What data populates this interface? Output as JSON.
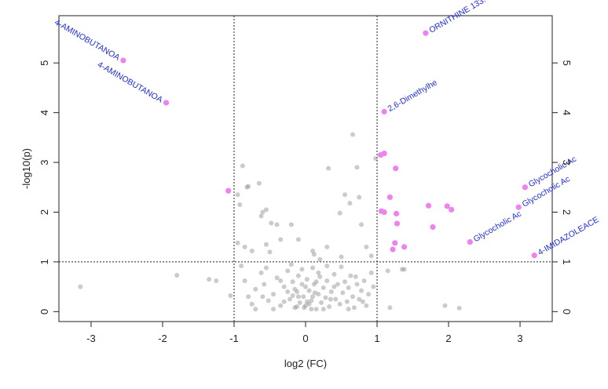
{
  "chart_data": {
    "type": "scatter",
    "title": "",
    "xlabel": "log2 (FC)",
    "ylabel": "-log10(p)",
    "xlim": [
      -3.45,
      3.45
    ],
    "ylim": [
      -0.2,
      5.95
    ],
    "x_ticks": [
      -3,
      -2,
      -1,
      0,
      1,
      2,
      3
    ],
    "y_ticks": [
      0,
      1,
      2,
      3,
      4,
      5
    ],
    "right_axis_ticks": [
      0,
      1,
      2,
      3,
      4,
      5
    ],
    "threshold_lines": {
      "vertical": [
        -1,
        1
      ],
      "horizontal": [
        1
      ]
    },
    "colors": {
      "significant": "#ee82ee",
      "not_significant": "#8c8c8c",
      "label": "#1f2bd6"
    },
    "labeled_points": [
      {
        "label": "4-AMINOBUTANOA",
        "x": -2.55,
        "y": 5.05
      },
      {
        "label": "4-AMINOBUTANOA",
        "x": -1.95,
        "y": 4.2
      },
      {
        "label": "ORNITHINE 133.",
        "x": 1.68,
        "y": 5.6
      },
      {
        "label": "2,6-Dimethylhe",
        "x": 1.1,
        "y": 4.02
      },
      {
        "label": "Glycocholic Ac",
        "x": 3.07,
        "y": 2.5
      },
      {
        "label": "Glycocholic Ac",
        "x": 2.98,
        "y": 2.1
      },
      {
        "label": "Glycocholic Ac",
        "x": 2.3,
        "y": 1.4
      },
      {
        "label": "4-IMIDAZOLEACE",
        "x": 3.2,
        "y": 1.13
      }
    ],
    "significant_points": [
      [
        -1.08,
        2.43
      ],
      [
        1.05,
        3.15
      ],
      [
        1.1,
        3.18
      ],
      [
        1.06,
        2.02
      ],
      [
        1.1,
        2.0
      ],
      [
        1.18,
        2.3
      ],
      [
        1.26,
        2.88
      ],
      [
        1.27,
        1.97
      ],
      [
        1.28,
        1.77
      ],
      [
        1.22,
        1.25
      ],
      [
        1.25,
        1.38
      ],
      [
        1.38,
        1.3
      ],
      [
        1.72,
        2.13
      ],
      [
        1.78,
        1.7
      ],
      [
        1.98,
        2.12
      ],
      [
        2.04,
        2.05
      ]
    ],
    "nonsignificant_points": [
      [
        -3.15,
        0.5
      ],
      [
        -1.8,
        0.73
      ],
      [
        -1.35,
        0.65
      ],
      [
        -1.25,
        0.62
      ],
      [
        -1.05,
        0.32
      ],
      [
        -0.95,
        2.35
      ],
      [
        -0.92,
        2.15
      ],
      [
        -0.88,
        2.93
      ],
      [
        -0.82,
        2.5
      ],
      [
        -0.8,
        2.52
      ],
      [
        -0.65,
        2.58
      ],
      [
        -0.6,
        2.0
      ],
      [
        -0.55,
        2.05
      ],
      [
        -0.62,
        1.92
      ],
      [
        -0.48,
        1.78
      ],
      [
        -0.4,
        1.75
      ],
      [
        -0.2,
        1.75
      ],
      [
        -0.95,
        1.38
      ],
      [
        -0.85,
        1.3
      ],
      [
        -0.75,
        1.22
      ],
      [
        -0.55,
        1.35
      ],
      [
        -0.5,
        1.2
      ],
      [
        -0.35,
        1.45
      ],
      [
        -0.1,
        1.45
      ],
      [
        0.1,
        1.22
      ],
      [
        0.12,
        1.15
      ],
      [
        0.3,
        1.3
      ],
      [
        0.32,
        2.88
      ],
      [
        0.48,
        1.98
      ],
      [
        0.55,
        2.35
      ],
      [
        0.62,
        2.18
      ],
      [
        0.66,
        3.56
      ],
      [
        0.72,
        2.9
      ],
      [
        0.75,
        2.3
      ],
      [
        0.78,
        1.75
      ],
      [
        0.85,
        1.3
      ],
      [
        0.92,
        1.12
      ],
      [
        0.98,
        3.08
      ],
      [
        0.5,
        1.1
      ],
      [
        0.2,
        1.05
      ],
      [
        1.35,
        0.85
      ],
      [
        1.38,
        0.85
      ],
      [
        1.15,
        0.82
      ],
      [
        1.18,
        0.08
      ],
      [
        1.95,
        0.12
      ],
      [
        2.15,
        0.07
      ],
      [
        -0.9,
        0.92
      ],
      [
        -0.85,
        0.62
      ],
      [
        -0.8,
        0.3
      ],
      [
        -0.75,
        0.15
      ],
      [
        -0.7,
        0.45
      ],
      [
        -0.62,
        0.78
      ],
      [
        -0.58,
        0.55
      ],
      [
        -0.52,
        0.22
      ],
      [
        -0.45,
        0.35
      ],
      [
        -0.4,
        0.68
      ],
      [
        -0.35,
        0.12
      ],
      [
        -0.3,
        0.5
      ],
      [
        -0.25,
        0.82
      ],
      [
        -0.22,
        0.25
      ],
      [
        -0.18,
        0.6
      ],
      [
        -0.15,
        0.08
      ],
      [
        -0.12,
        0.4
      ],
      [
        -0.1,
        0.72
      ],
      [
        -0.08,
        0.18
      ],
      [
        -0.05,
        0.55
      ],
      [
        -0.03,
        0.3
      ],
      [
        0.0,
        0.12
      ],
      [
        0.02,
        0.65
      ],
      [
        0.05,
        0.42
      ],
      [
        0.08,
        0.22
      ],
      [
        0.1,
        0.88
      ],
      [
        0.12,
        0.55
      ],
      [
        0.15,
        0.05
      ],
      [
        0.18,
        0.35
      ],
      [
        0.2,
        0.7
      ],
      [
        0.22,
        0.18
      ],
      [
        0.25,
        0.48
      ],
      [
        0.28,
        0.28
      ],
      [
        0.3,
        0.62
      ],
      [
        0.33,
        0.1
      ],
      [
        0.36,
        0.4
      ],
      [
        0.4,
        0.75
      ],
      [
        0.42,
        0.25
      ],
      [
        0.45,
        0.55
      ],
      [
        0.48,
        0.15
      ],
      [
        0.5,
        0.9
      ],
      [
        0.52,
        0.38
      ],
      [
        0.55,
        0.6
      ],
      [
        0.58,
        0.2
      ],
      [
        0.6,
        0.48
      ],
      [
        0.63,
        0.72
      ],
      [
        0.66,
        0.3
      ],
      [
        0.68,
        0.08
      ],
      [
        0.72,
        0.55
      ],
      [
        0.75,
        0.25
      ],
      [
        0.78,
        0.42
      ],
      [
        0.82,
        0.62
      ],
      [
        0.85,
        0.12
      ],
      [
        0.88,
        0.35
      ],
      [
        0.92,
        0.78
      ],
      [
        0.95,
        0.5
      ],
      [
        -0.2,
        0.95
      ],
      [
        -0.1,
        0.3
      ],
      [
        0.0,
        0.5
      ],
      [
        0.05,
        0.15
      ],
      [
        -0.3,
        0.2
      ],
      [
        -0.25,
        0.4
      ],
      [
        0.15,
        0.6
      ],
      [
        0.25,
        0.05
      ],
      [
        0.35,
        0.25
      ],
      [
        -0.45,
        0.05
      ],
      [
        -0.6,
        0.3
      ],
      [
        -0.7,
        0.05
      ],
      [
        -0.15,
        0.45
      ],
      [
        0.1,
        0.3
      ],
      [
        0.4,
        0.5
      ],
      [
        0.6,
        0.05
      ],
      [
        0.7,
        0.7
      ],
      [
        0.8,
        0.2
      ],
      [
        -0.05,
        0.85
      ],
      [
        -0.35,
        0.62
      ],
      [
        0.18,
        0.78
      ],
      [
        0.3,
        0.92
      ],
      [
        -0.55,
        0.88
      ],
      [
        0.02,
        0.2
      ],
      [
        -0.12,
        0.1
      ],
      [
        0.08,
        0.05
      ],
      [
        -0.02,
        0.08
      ],
      [
        0.13,
        0.38
      ],
      [
        -0.18,
        0.32
      ]
    ]
  }
}
